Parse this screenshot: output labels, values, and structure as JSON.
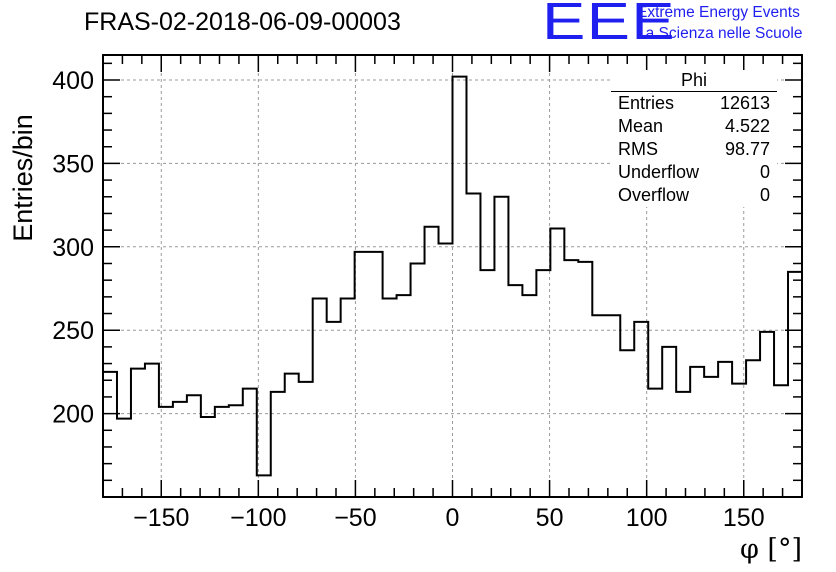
{
  "header": {
    "title": "FRAS-02-2018-06-09-00003",
    "logo_text": "EEE",
    "tagline_1": "Extreme Energy Events",
    "tagline_2": "La Scienza nelle Scuole",
    "brand_color": "#1f1ff0"
  },
  "stats": {
    "name": "Phi",
    "rows": [
      {
        "label": "Entries",
        "value": "12613"
      },
      {
        "label": "Mean",
        "value": "4.522"
      },
      {
        "label": "RMS",
        "value": "98.77"
      },
      {
        "label": "Underflow",
        "value": "0"
      },
      {
        "label": "Overflow",
        "value": "0"
      }
    ]
  },
  "chart_data": {
    "type": "histogram",
    "title": "FRAS-02-2018-06-09-00003",
    "xlabel": "φ [°]",
    "ylabel": "Entries/bin",
    "xlim": [
      -180,
      180
    ],
    "ylim": [
      150,
      415
    ],
    "bin_width": 7.2,
    "xticks": [
      -150,
      -100,
      -50,
      0,
      50,
      100,
      150
    ],
    "yticks": [
      200,
      250,
      300,
      350,
      400
    ],
    "grid": true,
    "line_color": "#000000",
    "values": [
      225,
      197,
      227,
      230,
      204,
      207,
      211,
      198,
      204,
      205,
      215,
      163,
      213,
      224,
      219,
      269,
      255,
      269,
      297,
      297,
      269,
      271,
      290,
      312,
      302,
      402,
      332,
      286,
      330,
      277,
      271,
      286,
      311,
      292,
      291,
      259,
      259,
      238,
      255,
      215,
      240,
      213,
      228,
      222,
      231,
      218,
      232,
      249,
      217,
      285
    ]
  }
}
